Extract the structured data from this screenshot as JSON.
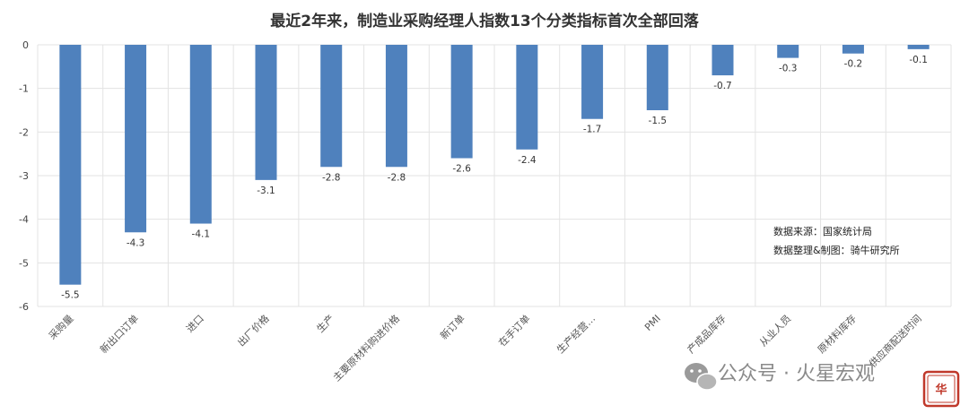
{
  "chart_data": {
    "type": "bar",
    "title": "最近2年来，制造业采购经理人指数13个分类指标首次全部回落",
    "categories": [
      "采购量",
      "新出口订单",
      "进口",
      "出厂价格",
      "生产",
      "主要原材料购进价格",
      "新订单",
      "在手订单",
      "生产经营…",
      "PMI",
      "产成品库存",
      "从业人员",
      "原材料库存",
      "供应商配送时间"
    ],
    "values": [
      -5.5,
      -4.3,
      -4.1,
      -3.1,
      -2.8,
      -2.8,
      -2.6,
      -2.4,
      -1.7,
      -1.5,
      -0.7,
      -0.3,
      -0.2,
      -0.1
    ],
    "data_labels": [
      "-5.5",
      "-4.3",
      "-4.1",
      "-3.1",
      "-2.8",
      "-2.8",
      "-2.6",
      "-2.4",
      "-1.7",
      "-1.5",
      "-0.7",
      "-0.3",
      "-0.2",
      "-0.1"
    ],
    "yticks": [
      "0",
      "-1",
      "-2",
      "-3",
      "-4",
      "-5",
      "-6"
    ],
    "ylim": [
      -6,
      0
    ],
    "grid": true,
    "bar_color": "#4f81bd",
    "legend": "none"
  },
  "source_note": {
    "line1": "数据来源：国家统计局",
    "line2": "数据整理&制图：骑牛研究所"
  },
  "watermark": {
    "text": "公众号 · 火星宏观",
    "icon": "wechat-icon"
  },
  "seal": {
    "text": "华"
  }
}
